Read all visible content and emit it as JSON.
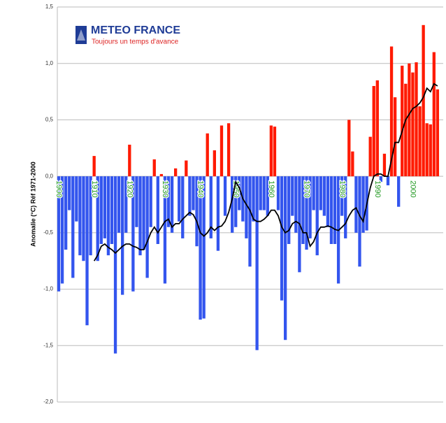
{
  "chart_data": {
    "type": "bar",
    "ylabel": "Anomalie (°C) Réf 1971-2000",
    "logo": {
      "title": "METEO FRANCE",
      "subtitle": "Toujours un temps d'avance"
    },
    "x": [
      1900,
      1901,
      1902,
      1903,
      1904,
      1905,
      1906,
      1907,
      1908,
      1909,
      1910,
      1911,
      1912,
      1913,
      1914,
      1915,
      1916,
      1917,
      1918,
      1919,
      1920,
      1921,
      1922,
      1923,
      1924,
      1925,
      1926,
      1927,
      1928,
      1929,
      1930,
      1931,
      1932,
      1933,
      1934,
      1935,
      1936,
      1937,
      1938,
      1939,
      1940,
      1941,
      1942,
      1943,
      1944,
      1945,
      1946,
      1947,
      1948,
      1949,
      1950,
      1951,
      1952,
      1953,
      1954,
      1955,
      1956,
      1957,
      1958,
      1959,
      1960,
      1961,
      1962,
      1963,
      1964,
      1965,
      1966,
      1967,
      1968,
      1969,
      1970,
      1971,
      1972,
      1973,
      1974,
      1975,
      1976,
      1977,
      1978,
      1979,
      1980,
      1981,
      1982,
      1983,
      1984,
      1985,
      1986,
      1987,
      1988,
      1989,
      1990,
      1991,
      1992,
      1993,
      1994,
      1995,
      1996,
      1997,
      1998,
      1999,
      2000,
      2001,
      2002,
      2003,
      2004,
      2005,
      2006,
      2007
    ],
    "values": [
      -1.02,
      -0.95,
      -0.65,
      -0.3,
      -0.9,
      -0.4,
      -0.7,
      -0.75,
      -1.32,
      -0.7,
      0.18,
      -0.75,
      -0.6,
      -0.55,
      -0.7,
      -0.6,
      -1.57,
      -0.5,
      -1.05,
      -0.5,
      0.28,
      -1.02,
      -0.45,
      -0.7,
      -0.65,
      -0.9,
      -0.45,
      0.15,
      -0.6,
      0.02,
      -0.95,
      -0.45,
      -0.5,
      0.07,
      -0.4,
      -0.55,
      0.14,
      -0.35,
      -0.3,
      -0.62,
      -1.27,
      -1.26,
      0.38,
      -0.55,
      0.23,
      -0.66,
      0.45,
      -0.35,
      0.47,
      -0.5,
      -0.45,
      -0.3,
      -0.4,
      -0.55,
      -0.8,
      -0.4,
      -1.54,
      -0.3,
      -0.3,
      -0.35,
      0.45,
      0.44,
      -0.3,
      -1.1,
      -1.45,
      -0.6,
      -0.35,
      -0.5,
      -0.85,
      -0.6,
      -0.65,
      -0.55,
      -0.3,
      -0.7,
      -0.3,
      -0.35,
      -0.45,
      -0.6,
      -0.6,
      -0.95,
      -0.35,
      -0.55,
      0.5,
      0.22,
      -0.5,
      -0.8,
      -0.5,
      -0.48,
      0.35,
      0.8,
      0.85,
      -0.05,
      0.2,
      -0.08,
      1.15,
      0.7,
      -0.27,
      0.98,
      0.82,
      1.0,
      0.92,
      1.01,
      0.62,
      1.34,
      0.47,
      0.46,
      1.1,
      0.77
    ],
    "positive_color": "#ff1a00",
    "negative_color": "#3355ee",
    "line": {
      "color": "#000000",
      "x": [
        1910,
        1911,
        1912,
        1913,
        1914,
        1915,
        1916,
        1917,
        1918,
        1919,
        1920,
        1921,
        1922,
        1923,
        1924,
        1925,
        1926,
        1927,
        1928,
        1929,
        1930,
        1931,
        1932,
        1933,
        1934,
        1935,
        1936,
        1937,
        1938,
        1939,
        1940,
        1941,
        1942,
        1943,
        1944,
        1945,
        1946,
        1947,
        1948,
        1949,
        1950,
        1951,
        1952,
        1953,
        1954,
        1955,
        1956,
        1957,
        1958,
        1959,
        1960,
        1961,
        1962,
        1963,
        1964,
        1965,
        1966,
        1967,
        1968,
        1969,
        1970,
        1971,
        1972,
        1973,
        1974,
        1975,
        1976,
        1977,
        1978,
        1979,
        1980,
        1981,
        1982,
        1983,
        1984,
        1985,
        1986,
        1987,
        1988,
        1989,
        1990,
        1991,
        1992,
        1993,
        1994,
        1995,
        1996,
        1997,
        1998,
        1999,
        2000,
        2001,
        2002,
        2003,
        2004,
        2005,
        2006,
        2007
      ],
      "values": [
        -0.75,
        -0.7,
        -0.62,
        -0.6,
        -0.63,
        -0.65,
        -0.68,
        -0.65,
        -0.62,
        -0.6,
        -0.6,
        -0.62,
        -0.63,
        -0.65,
        -0.65,
        -0.58,
        -0.5,
        -0.45,
        -0.5,
        -0.45,
        -0.4,
        -0.38,
        -0.45,
        -0.42,
        -0.42,
        -0.38,
        -0.35,
        -0.32,
        -0.34,
        -0.4,
        -0.5,
        -0.53,
        -0.5,
        -0.45,
        -0.48,
        -0.45,
        -0.44,
        -0.4,
        -0.32,
        -0.2,
        -0.05,
        -0.1,
        -0.2,
        -0.25,
        -0.3,
        -0.38,
        -0.4,
        -0.4,
        -0.38,
        -0.35,
        -0.3,
        -0.3,
        -0.35,
        -0.45,
        -0.5,
        -0.48,
        -0.42,
        -0.4,
        -0.42,
        -0.5,
        -0.5,
        -0.62,
        -0.58,
        -0.5,
        -0.45,
        -0.45,
        -0.44,
        -0.45,
        -0.47,
        -0.48,
        -0.45,
        -0.42,
        -0.35,
        -0.3,
        -0.28,
        -0.35,
        -0.4,
        -0.25,
        -0.1,
        0.0,
        0.02,
        0.02,
        0.0,
        0.0,
        0.15,
        0.3,
        0.3,
        0.4,
        0.5,
        0.55,
        0.6,
        0.62,
        0.65,
        0.7,
        0.78,
        0.75,
        0.82,
        0.8
      ]
    },
    "xlim": [
      1899.6,
      2008.6
    ],
    "xticks": [
      1900,
      1910,
      1920,
      1930,
      1940,
      1950,
      1960,
      1970,
      1980,
      1990,
      2000
    ],
    "xtick_color": "#229922",
    "ylim": [
      -2.0,
      1.5
    ],
    "yticks": [
      {
        "value": -2.0,
        "label": "-2,0"
      },
      {
        "value": -1.5,
        "label": "-1,5"
      },
      {
        "value": -1.0,
        "label": "-1,0"
      },
      {
        "value": -0.5,
        "label": "-0,5"
      },
      {
        "value": 0.0,
        "label": "0,0"
      },
      {
        "value": 0.5,
        "label": "0,5"
      },
      {
        "value": 1.0,
        "label": "1,0"
      },
      {
        "value": 1.5,
        "label": "1,5"
      }
    ],
    "grid": true
  }
}
